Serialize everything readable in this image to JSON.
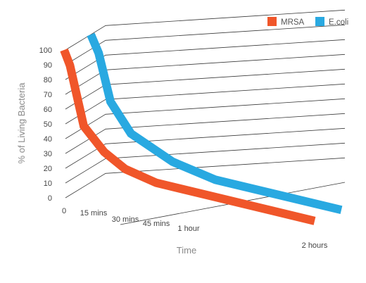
{
  "chart_data": {
    "type": "line",
    "subtype": "3d-perspective",
    "title": "",
    "xlabel": "Time",
    "ylabel": "% of Living Bacteria",
    "categories": [
      "0",
      "15 mins",
      "30 mins",
      "45 mins",
      "1 hour",
      "2 hours"
    ],
    "x_minutes": [
      0,
      15,
      30,
      45,
      60,
      120
    ],
    "yticks": [
      "0",
      "10",
      "20",
      "30",
      "40",
      "50",
      "60",
      "70",
      "80",
      "90",
      "100"
    ],
    "ylim": [
      0,
      100
    ],
    "grid": true,
    "legend_position": "top-right",
    "series": [
      {
        "name": "MRSA",
        "color": "#f0562a",
        "points": [
          [
            0,
            100
          ],
          [
            3,
            90
          ],
          [
            10,
            50
          ],
          [
            20,
            34
          ],
          [
            30,
            24
          ],
          [
            45,
            17
          ],
          [
            120,
            3
          ]
        ]
      },
      {
        "name": "E.coli",
        "color": "#29a9e1",
        "points": [
          [
            0,
            100
          ],
          [
            4,
            88
          ],
          [
            10,
            56
          ],
          [
            20,
            36
          ],
          [
            40,
            20
          ],
          [
            60,
            11
          ],
          [
            120,
            0
          ]
        ]
      }
    ]
  }
}
